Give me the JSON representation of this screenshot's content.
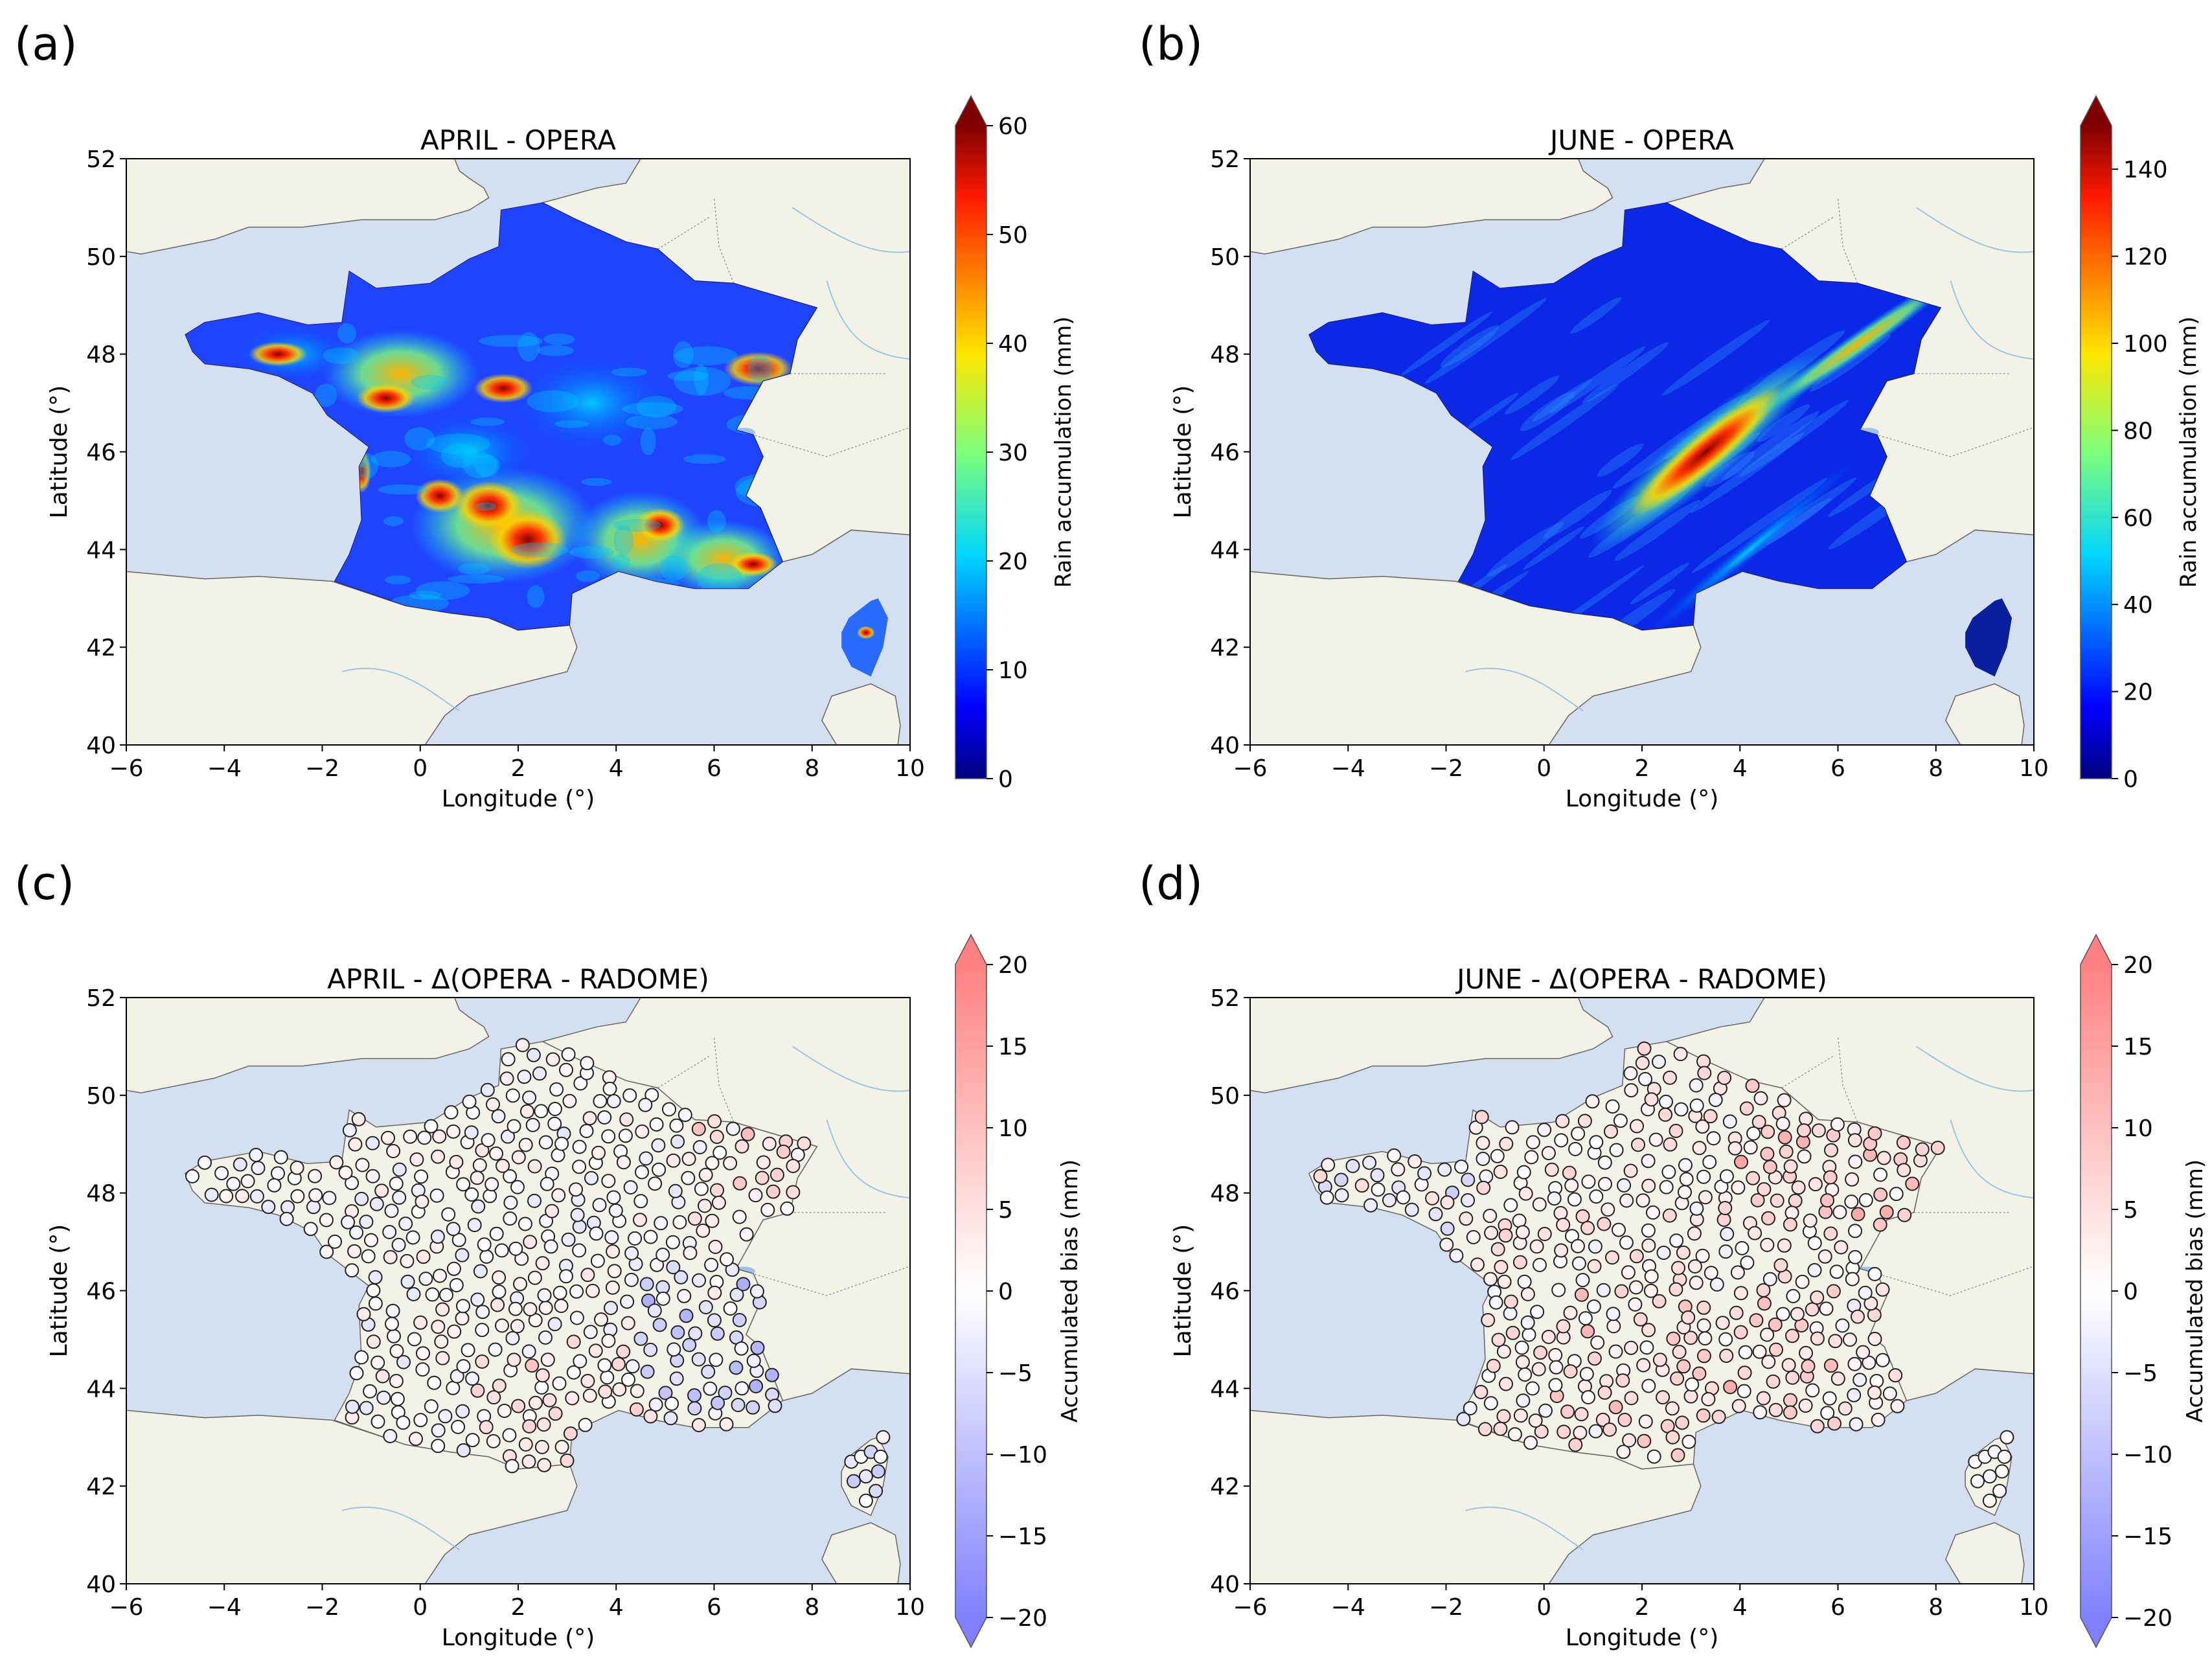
{
  "panels": [
    {
      "id": "a",
      "letter": "(a)",
      "title": "APRIL - OPERA",
      "type": "rain",
      "colorbar": {
        "label": "Rain accumulation (mm)",
        "ticks": [
          0,
          10,
          20,
          30,
          40,
          50,
          60
        ],
        "min": 0,
        "max": 60
      }
    },
    {
      "id": "b",
      "letter": "(b)",
      "title": "JUNE - OPERA",
      "type": "rain",
      "colorbar": {
        "label": "Rain accumulation (mm)",
        "ticks": [
          0,
          20,
          40,
          60,
          80,
          100,
          120,
          140
        ],
        "min": 0,
        "max": 150
      }
    },
    {
      "id": "c",
      "letter": "(c)",
      "title": "APRIL - Δ(OPERA - RADOME)",
      "type": "bias",
      "colorbar": {
        "label": "Accumulated bias (mm)",
        "ticks": [
          -20,
          -15,
          -10,
          -5,
          0,
          5,
          10,
          15,
          20
        ],
        "min": -20,
        "max": 20
      }
    },
    {
      "id": "d",
      "letter": "(d)",
      "title": "JUNE - Δ(OPERA - RADOME)",
      "type": "bias",
      "colorbar": {
        "label": "Accumulated bias (mm)",
        "ticks": [
          -20,
          -15,
          -10,
          -5,
          0,
          5,
          10,
          15,
          20
        ],
        "min": -20,
        "max": 20
      }
    }
  ],
  "axes": {
    "xlabel": "Longitude (°)",
    "ylabel": "Latitude (°)",
    "xlim": [
      -6,
      10
    ],
    "ylim": [
      40,
      52
    ],
    "xticks": [
      "−6",
      "−4",
      "−2",
      "0",
      "2",
      "4",
      "6",
      "8",
      "10"
    ],
    "yticks": [
      "40",
      "42",
      "44",
      "46",
      "48",
      "50",
      "52"
    ]
  },
  "colors": {
    "sea": "#d4dff0",
    "land": "#f3f2e6",
    "border": "#555555"
  }
}
